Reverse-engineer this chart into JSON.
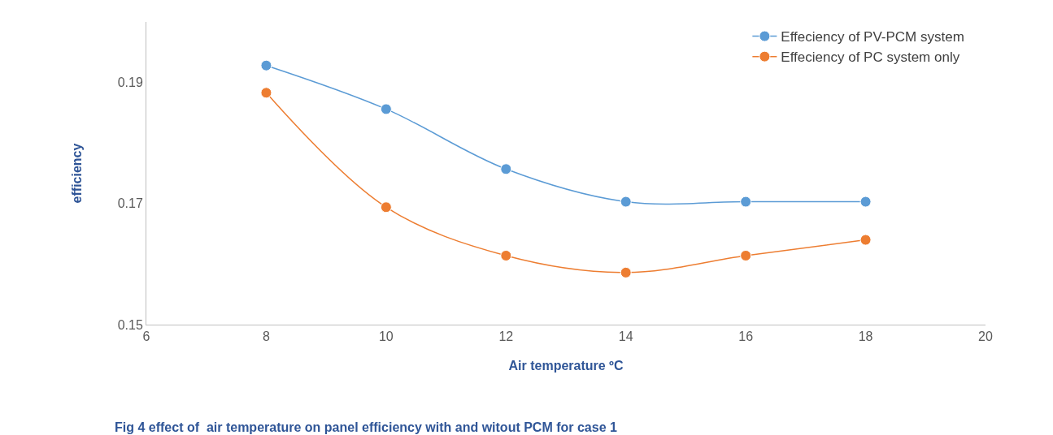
{
  "chart_data": {
    "type": "line",
    "xlabel": "Air temperature ºC",
    "ylabel": "efficiency",
    "annotations": [
      "Fig 4 effect of  air temperature on panel efficiency with and witout PCM for case 1"
    ],
    "x": [
      8,
      10,
      12,
      14,
      16,
      18
    ],
    "series": [
      {
        "name": "Effeciency of PV-PCM system",
        "color": "#5b9bd5",
        "values": [
          0.1928,
          0.1856,
          0.1757,
          0.1703,
          0.1703,
          0.1703
        ]
      },
      {
        "name": "Effeciency of PC system only",
        "color": "#ed7d31",
        "values": [
          0.1883,
          0.1694,
          0.1614,
          0.1586,
          0.1614,
          0.164
        ]
      }
    ],
    "xlim": [
      6,
      20
    ],
    "xticks": [
      6,
      8,
      10,
      12,
      14,
      16,
      18,
      20
    ],
    "ylim": [
      0.15,
      0.2
    ],
    "yticks": [
      0.15,
      0.17,
      0.19
    ],
    "grid": false,
    "legend": "top right",
    "marker": "circle",
    "line_style": "solid"
  }
}
